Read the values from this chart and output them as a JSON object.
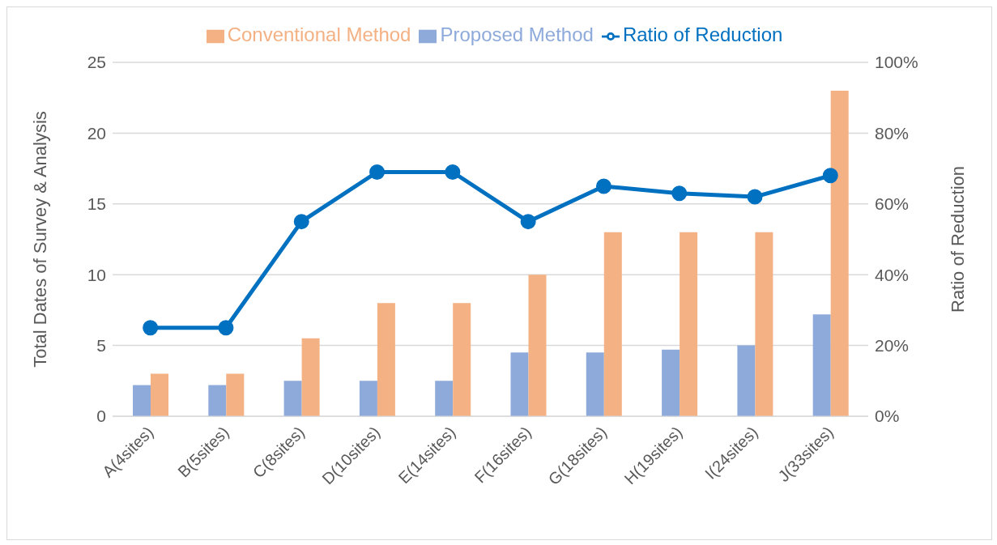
{
  "chart_data": {
    "type": "bar",
    "ylabel": "Total Dates of Survey & Analysis",
    "y2label": "Ratio of Reduction",
    "categories": [
      "A(4sites)",
      "B(5sites)",
      "C(8sites)",
      "D(10sites)",
      "E(14sites)",
      "F(16sites)",
      "G(18sites)",
      "H(19sites)",
      "I(24sites)",
      "J(33sites)"
    ],
    "series": [
      {
        "name": "Proposed Method",
        "color": "#8eaadb",
        "values": [
          2.2,
          2.2,
          2.5,
          2.5,
          2.5,
          4.5,
          4.5,
          4.7,
          5.0,
          7.2
        ]
      },
      {
        "name": "Conventional Method",
        "color": "#f4b183",
        "values": [
          3,
          3,
          5.5,
          8,
          8,
          10,
          13,
          13,
          13,
          23
        ]
      },
      {
        "name": "Ratio of Reduction",
        "type": "line",
        "axis": "y2",
        "color": "#0070c0",
        "marker": "circle",
        "values": [
          25,
          25,
          55,
          69,
          69,
          55,
          65,
          63,
          62,
          68
        ]
      }
    ],
    "ylim": [
      0,
      25
    ],
    "yticks": [
      0,
      5,
      10,
      15,
      20,
      25
    ],
    "y2lim": [
      0,
      100
    ],
    "y2ticks": [
      {
        "value": 0,
        "label": "0%"
      },
      {
        "value": 20,
        "label": "20%"
      },
      {
        "value": 40,
        "label": "40%"
      },
      {
        "value": 60,
        "label": "60%"
      },
      {
        "value": 80,
        "label": "80%"
      },
      {
        "value": 100,
        "label": "100%"
      }
    ],
    "grid": "y",
    "legend": "top"
  }
}
